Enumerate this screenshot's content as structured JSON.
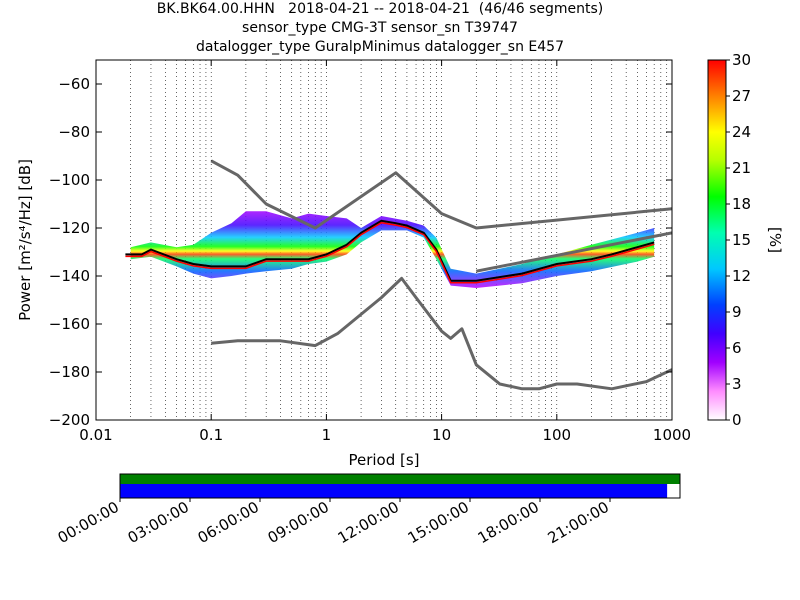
{
  "header": {
    "title_lines": [
      "BK.BK64.00.HHN   2018-04-21 -- 2018-04-21  (46/46 segments)",
      "sensor_type CMG-3T sensor_sn T39747",
      "datalogger_type GuralpMinimus datalogger_sn E457"
    ]
  },
  "chart_data": {
    "type": "heatmap",
    "title": "BK.BK64.00.HHN   2018-04-21 -- 2018-04-21  (46/46 segments)",
    "xlabel": "Period [s]",
    "ylabel": "Power [m²/s⁴/Hz] [dB]",
    "x_scale": "log",
    "xlim": [
      0.01,
      1000
    ],
    "ylim": [
      -200,
      -50
    ],
    "x_ticks": [
      0.01,
      0.1,
      1,
      10,
      100,
      1000
    ],
    "x_tick_labels": [
      "0.01",
      "0.1",
      "1",
      "10",
      "100",
      "1000"
    ],
    "y_ticks": [
      -200,
      -180,
      -160,
      -140,
      -120,
      -100,
      -80,
      -60
    ],
    "y_tick_labels": [
      "−200",
      "−180",
      "−160",
      "−140",
      "−120",
      "−100",
      "−80",
      "−60"
    ],
    "grid": "dotted vertical",
    "colorbar": {
      "label": "[%]",
      "range": [
        0,
        30
      ],
      "ticks": [
        0,
        3,
        6,
        9,
        12,
        15,
        18,
        21,
        24,
        27,
        30
      ],
      "tick_labels": [
        "0",
        "3",
        "6",
        "9",
        "12",
        "15",
        "18",
        "21",
        "24",
        "27",
        "30"
      ]
    },
    "noise_models": [
      {
        "name": "high",
        "x": [
          0.1,
          0.17,
          0.3,
          0.8,
          4,
          10,
          20,
          1000
        ],
        "y": [
          -92,
          -98,
          -110,
          -120,
          -97,
          -114,
          -120,
          -112
        ]
      },
      {
        "name": "low",
        "x": [
          0.1,
          0.17,
          0.4,
          0.8,
          1.25,
          3,
          4.5,
          6,
          10,
          12,
          15,
          20,
          32,
          50,
          70,
          100,
          150,
          300,
          600,
          1000
        ],
        "y": [
          -168,
          -167,
          -167,
          -169,
          -164,
          -149,
          -141,
          -149,
          -163,
          -166,
          -162,
          -177,
          -185,
          -187,
          -187,
          -185,
          -185,
          -187,
          -184,
          -179
        ]
      },
      {
        "name": "low-high-connector",
        "x": [
          20,
          1000
        ],
        "y": [
          -138,
          -122
        ]
      }
    ],
    "psd_mode": {
      "x": [
        0.018,
        0.025,
        0.03,
        0.05,
        0.07,
        0.1,
        0.15,
        0.2,
        0.3,
        0.5,
        0.7,
        1,
        1.5,
        2,
        3,
        4,
        5,
        7,
        9,
        12,
        20,
        50,
        100,
        200,
        300,
        500,
        700
      ],
      "y": [
        -131,
        -131,
        -129,
        -133,
        -135,
        -136,
        -136,
        -136,
        -133,
        -133,
        -133,
        -131,
        -127,
        -122,
        -117,
        -118,
        -119,
        -122,
        -129,
        -142,
        -142,
        -139,
        -135,
        -133,
        -131,
        -128,
        -126
      ]
    },
    "psd_upper_envelope": {
      "x": [
        0.02,
        0.03,
        0.05,
        0.07,
        0.1,
        0.15,
        0.2,
        0.3,
        0.5,
        0.7,
        1,
        1.5,
        2,
        3,
        5,
        7,
        9,
        12,
        20,
        50,
        100,
        200,
        500,
        700
      ],
      "y": [
        -128,
        -126,
        -128,
        -127,
        -122,
        -118,
        -113,
        -113,
        -116,
        -114,
        -115,
        -116,
        -120,
        -115,
        -117,
        -119,
        -124,
        -137,
        -139,
        -135,
        -131,
        -127,
        -122,
        -120
      ]
    },
    "psd_lower_envelope": {
      "x": [
        0.02,
        0.03,
        0.05,
        0.07,
        0.1,
        0.15,
        0.2,
        0.3,
        0.5,
        0.7,
        1,
        1.5,
        2,
        3,
        5,
        7,
        9,
        12,
        20,
        50,
        100,
        200,
        500,
        700
      ],
      "y": [
        -133,
        -132,
        -136,
        -139,
        -141,
        -140,
        -139,
        -138,
        -137,
        -135,
        -134,
        -131,
        -126,
        -121,
        -121,
        -124,
        -133,
        -144,
        -145,
        -143,
        -140,
        -138,
        -134,
        -132
      ]
    },
    "data_availability": {
      "time_labels": [
        "00:00:00",
        "03:00:00",
        "06:00:00",
        "09:00:00",
        "12:00:00",
        "15:00:00",
        "18:00:00",
        "21:00:00"
      ],
      "green_fraction": 1.0,
      "blue_fraction": 0.977,
      "green_color": "#008000",
      "blue_color": "#0000ff"
    }
  }
}
